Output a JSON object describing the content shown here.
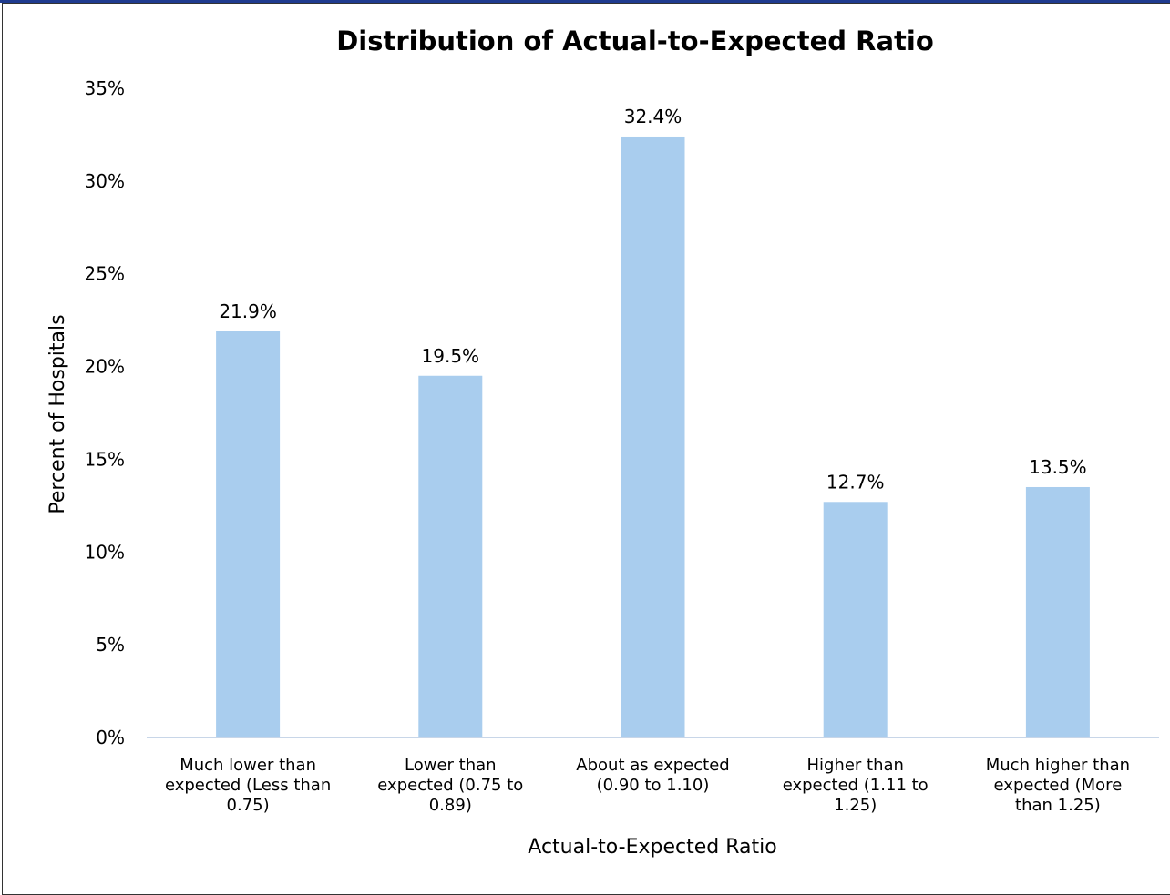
{
  "chart_data": {
    "type": "bar",
    "title": "Distribution of Actual-to-Expected Ratio",
    "xlabel": "Actual-to-Expected Ratio",
    "ylabel": "Percent of Hospitals",
    "categories": [
      [
        "Much lower than",
        "expected (Less than",
        "0.75)"
      ],
      [
        "Lower than",
        "expected (0.75 to",
        "0.89)"
      ],
      [
        "About as expected",
        "(0.90 to 1.10)"
      ],
      [
        "Higher than",
        "expected (1.11 to",
        "1.25)"
      ],
      [
        "Much higher than",
        "expected (More",
        "than 1.25)"
      ]
    ],
    "values": [
      21.9,
      19.5,
      32.4,
      12.7,
      13.5
    ],
    "data_labels": [
      "21.9%",
      "19.5%",
      "32.4%",
      "12.7%",
      "13.5%"
    ],
    "ylim": [
      0,
      35
    ],
    "yticks": [
      "0%",
      "5%",
      "10%",
      "15%",
      "20%",
      "25%",
      "30%",
      "35%"
    ],
    "ytick_values": [
      0,
      5,
      10,
      15,
      20,
      25,
      30,
      35
    ],
    "grid": false,
    "legend": "none",
    "bar_color": "#a9cdee",
    "axis_color": "#c8d6e8"
  }
}
